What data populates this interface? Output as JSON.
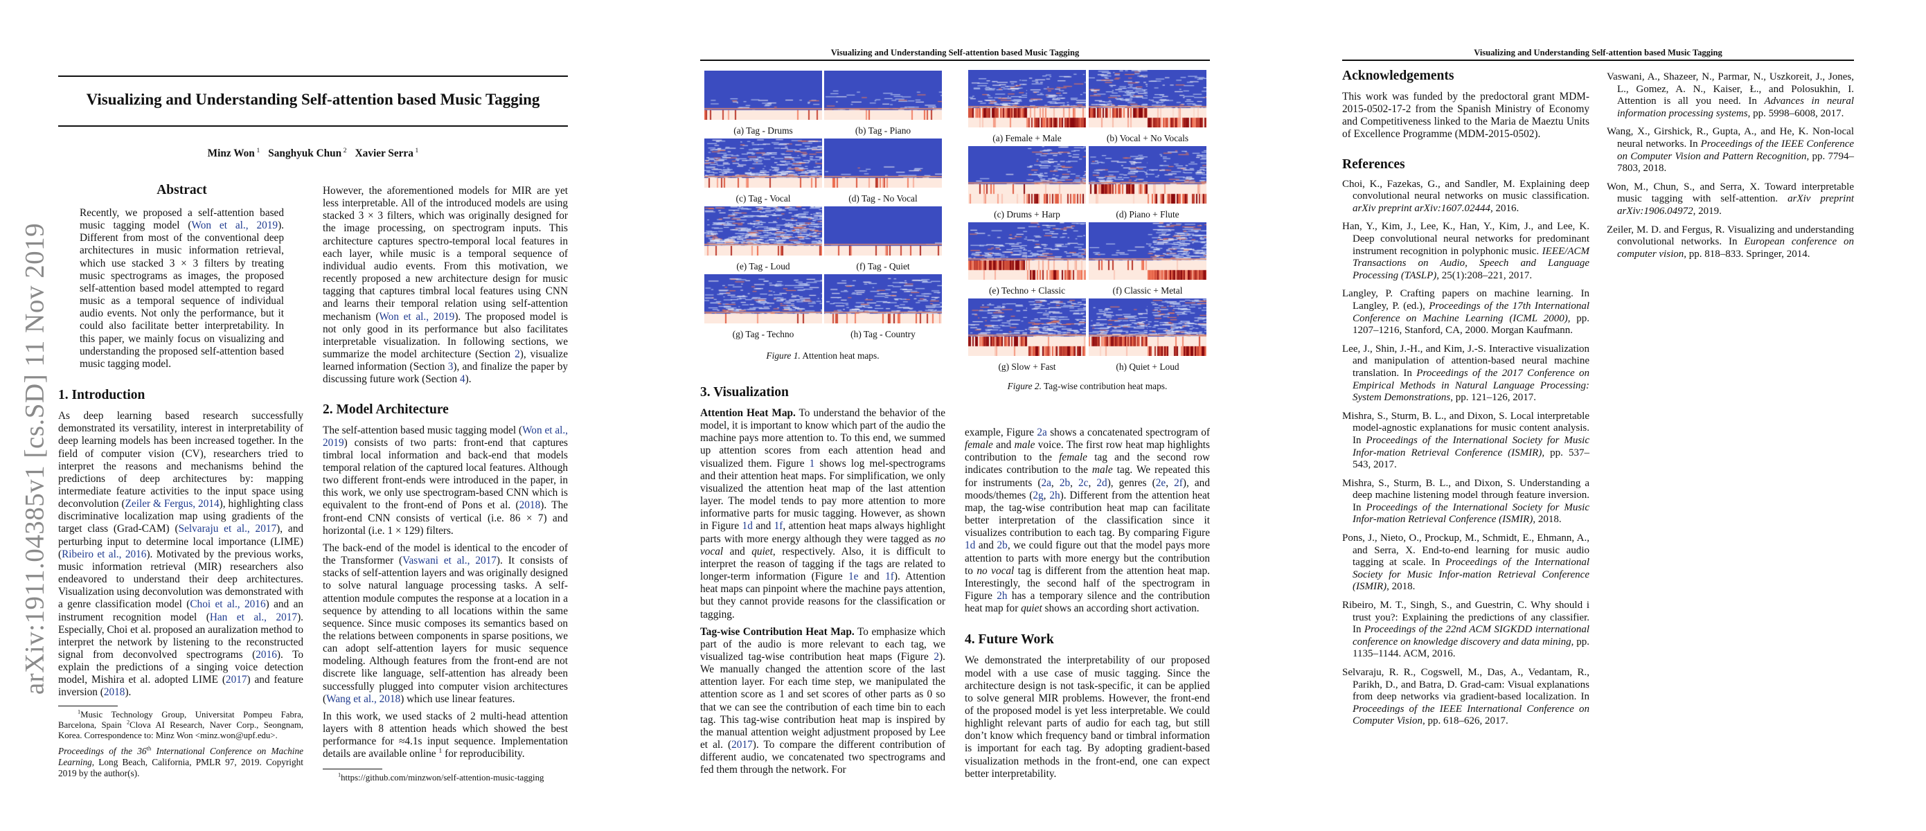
{
  "sidebar": {
    "arxiv_id": "arXiv:1911.04385v1  [cs.SD]  11 Nov 2019"
  },
  "running_header": "Visualizing and Understanding Self-attention based Music Tagging",
  "page1": {
    "title": "Visualizing and Understanding Self-attention based Music Tagging",
    "authors": [
      {
        "name": "Minz Won",
        "aff": "1"
      },
      {
        "name": "Sanghyuk Chun",
        "aff": "2"
      },
      {
        "name": "Xavier Serra",
        "aff": "1"
      }
    ],
    "abstract_heading": "Abstract",
    "abstract": [
      [
        "Recently, we proposed a self-attention based music tagging model (",
        {
          "link": "Won et al., 2019"
        },
        "). Different from most of the conventional deep architectures in music information retrieval, which use stacked 3 × 3 filters by treating music spectrograms as images, the proposed self-attention based model attempted to regard music as a temporal sequence of individual audio events. Not only the performance, but it could also facilitate better interpretability. In this paper, we mainly focus on visualizing and understanding the proposed self-attention based music tagging model."
      ]
    ],
    "intro_cont": [
      [
        "However, the aforementioned models for MIR are yet less interpretable. All of the introduced models are using stacked 3 × 3 filters, which was originally designed for the image processing, on spectrogram inputs. This architecture captures spectro-temporal local features in each layer, while music is a temporal sequence of individual audio events. From this motivation, we recently proposed a new architecture design for music tagging that captures timbral local features using CNN and learns their temporal relation using self-attention mechanism (",
        {
          "link": "Won et al., 2019"
        },
        "). The proposed model is not only good in its performance but also facilitates interpretable visualization. In following sections, we summarize the model architecture (Section ",
        {
          "link": "2"
        },
        "), visualize learned information (Section ",
        {
          "link": "3"
        },
        "), and finalize the paper by discussing future work (Section ",
        {
          "link": "4"
        },
        ")."
      ]
    ],
    "intro_heading": "1. Introduction",
    "intro": [
      [
        "As deep learning based research successfully demonstrated its versatility, interest in interpretability of deep learning models has been increased together. In the field of computer vision (CV), researchers tried to interpret the reasons and mechanisms behind the predictions of deep architectures by: mapping intermediate feature activities to the input space using deconvolution (",
        {
          "link": "Zeiler & Fergus, 2014"
        },
        "), highlighting class discriminative localization map using gradients of the target class (Grad-CAM) (",
        {
          "link": "Selvaraju et al., 2017"
        },
        "), and perturbing input to determine local importance (LIME) (",
        {
          "link": "Ribeiro et al., 2016"
        },
        "). Motivated by the previous works, music information retrieval (MIR) researchers also endeavored to understand their deep architectures. Visualization using deconvolution was demonstrated with a genre classification model (",
        {
          "link": "Choi et al., 2016"
        },
        ") and an instrument recognition model (",
        {
          "link": "Han et al., 2017"
        },
        "). Especially, Choi et al. proposed an auralization method to interpret the network by listening to the reconstructed signal from deconvolved spectrograms (",
        {
          "link": "2016"
        },
        "). To explain the predictions of a singing voice detection model, Mishira et al. adopted LIME (",
        {
          "link": "2017"
        },
        ") and feature inversion (",
        {
          "link": "2018"
        },
        ")."
      ]
    ],
    "footnote_affil": [
      [
        {
          "sup": "1"
        },
        "Music Technology Group, Universitat Pompeu Fabra, Barcelona, Spain ",
        {
          "sup": "2"
        },
        "Clova AI Research, Naver Corp., Seongnam, Korea. Correspondence to: Minz Won <minz.won@upf.edu>."
      ]
    ],
    "proceedings": [
      [
        {
          "em": "Proceedings of the 36"
        },
        {
          "sup": "th"
        },
        {
          "em": " International Conference on Machine Learning"
        },
        ", Long Beach, California, PMLR 97, 2019. Copyright 2019 by the author(s)."
      ]
    ],
    "model_heading": "2. Model Architecture",
    "model": [
      [
        "The self-attention based music tagging model (",
        {
          "link": "Won et al., 2019"
        },
        ") consists of two parts: front-end that captures timbral local information and back-end that models temporal relation of the captured local features. Although two different front-ends were introduced in the paper, in this work, we only use spectrogram-based CNN which is equivalent to the front-end of Pons et al. (",
        {
          "link": "2018"
        },
        "). The front-end CNN consists of vertical (i.e. 86 × 7) and horizontal (i.e. 1 × 129) filters."
      ],
      [
        "The back-end of the model is identical to the encoder of the Transformer (",
        {
          "link": "Vaswani et al., 2017"
        },
        "). It consists of stacks of self-attention layers and was originally designed to solve natural language processing tasks. A self-attention module computes the response at a location in a sequence by attending to all locations within the same sequence. Since music composes its semantics based on the relations between components in sparse positions, we can adopt self-attention layers for music sequence modeling. Although features from the front-end are not discrete like language, self-attention has already been successfully plugged into computer vision architectures (",
        {
          "link": "Wang et al., 2018"
        },
        ") which use linear features."
      ],
      [
        "In this work, we used stacks of 2 multi-head attention layers with 8 attention heads which showed the best performance for ≈4.1s input sequence. Implementation details are available online ",
        {
          "sup": "1"
        },
        " for reproducibility."
      ]
    ],
    "footnote_url": [
      [
        {
          "sup": "1"
        },
        "https://github.com/minzwon/self-attention-music-tagging"
      ]
    ]
  },
  "page2": {
    "figure1": {
      "caption_label": "Figure 1.",
      "caption": " Attention heat maps.",
      "subfigures": [
        "(a) Tag - Drums",
        "(b) Tag - Piano",
        "(c) Tag - Vocal",
        "(d) Tag - No Vocal",
        "(e) Tag - Loud",
        "(f) Tag - Quiet",
        "(g) Tag - Techno",
        "(h) Tag - Country"
      ]
    },
    "figure2": {
      "caption_label": "Figure 2.",
      "caption": " Tag-wise contribution heat maps.",
      "subfigures": [
        "(a) Female + Male",
        "(b) Vocal + No Vocals",
        "(c) Drums + Harp",
        "(d) Piano + Flute",
        "(e) Techno + Classic",
        "(f) Classic + Metal",
        "(g) Slow + Fast",
        "(h) Quiet + Loud"
      ]
    },
    "vis_heading": "3. Visualization",
    "vis": [
      [
        {
          "b": "Attention Heat Map."
        },
        " To understand the behavior of the model, it is important to know which part of the audio the machine pays more attention to. To this end, we summed up attention scores from each attention head and visualized them. Figure ",
        {
          "link": "1"
        },
        " shows log mel-spectrograms and their attention heat maps. For simplification, we only visualized the attention heat map of the last attention layer. The model tends to pay more attention to more informative parts for music tagging. However, as shown in Figure ",
        {
          "link": "1d"
        },
        " and ",
        {
          "link": "1f"
        },
        ", attention heat maps always highlight parts with more energy although they were tagged as ",
        {
          "em": "no vocal"
        },
        " and ",
        {
          "em": "quiet"
        },
        ", respectively. Also, it is difficult to interpret the reason of tagging if the tags are related to longer-term information (Figure ",
        {
          "link": "1e"
        },
        " and ",
        {
          "link": "1f"
        },
        "). Attention heat maps can pinpoint where the machine pays attention, but they cannot provide reasons for the classification or tagging."
      ],
      [
        {
          "b": "Tag-wise Contribution Heat Map."
        },
        " To emphasize which part of the audio is more relevant to each tag, we visualized tag-wise contribution heat maps (Figure ",
        {
          "link": "2"
        },
        "). We manually changed the attention score of the last attention layer. For each time step, we manipulated the attention score as 1 and set scores of other parts as 0 so that we can see the contribution of each time bin to each tag. This tag-wise contribution heat map is inspired by the manual attention weight adjustment proposed by Lee et al. (",
        {
          "link": "2017"
        },
        "). To compare the different contribution of different audio, we concatenated two spectrograms and fed them through the network. For"
      ]
    ],
    "vis_cont": [
      [
        "example, Figure ",
        {
          "link": "2a"
        },
        " shows a concatenated spectrogram of ",
        {
          "em": "female"
        },
        " and ",
        {
          "em": "male"
        },
        " voice. The first row heat map highlights contribution to the ",
        {
          "em": "female"
        },
        " tag and the second row indicates contribution to the ",
        {
          "em": "male"
        },
        " tag. We repeated this for instruments (",
        {
          "link": "2a"
        },
        ", ",
        {
          "link": "2b"
        },
        ", ",
        {
          "link": "2c"
        },
        ", ",
        {
          "link": "2d"
        },
        "), genres (",
        {
          "link": "2e"
        },
        ", ",
        {
          "link": "2f"
        },
        "), and moods/themes (",
        {
          "link": "2g"
        },
        ", ",
        {
          "link": "2h"
        },
        "). Different from the attention heat map, the tag-wise contribution heat map can facilitate better interpretation of the classification since it visualizes contribution to each tag. By comparing Figure ",
        {
          "link": "1d"
        },
        " and ",
        {
          "link": "2b"
        },
        ", we could figure out that the model pays more attention to parts with more energy but the contribution to ",
        {
          "em": "no vocal"
        },
        " tag is different from the attention heat map. Interestingly, the second half of the spectrogram in Figure ",
        {
          "link": "2h"
        },
        " has a temporary silence and the contribution heat map for ",
        {
          "em": "quiet"
        },
        " shows an according short activation."
      ]
    ],
    "future_heading": "4. Future Work",
    "future": [
      [
        "We demonstrated the interpretability of our proposed model with a use case of music tagging. Since the architecture design is not task-specific, it can be applied to solve general MIR problems. However, the front-end of the proposed model is yet less interpretable. We could highlight relevant parts of audio for each tag, but still don’t know which frequency band or timbral information is important for each tag. By adopting gradient-based visualization methods in the front-end, one can expect better interpretability."
      ]
    ]
  },
  "page3": {
    "ack_heading": "Acknowledgements",
    "ack": [
      [
        "This work was funded by the predoctoral grant MDM-2015-0502-17-2 from the Spanish Ministry of Economy and Competitiveness linked to the Maria de Maeztu Units of Excellence Programme (MDM-2015-0502)."
      ]
    ],
    "refs_heading": "References",
    "refs_left": [
      [
        "Choi, K., Fazekas, G., and Sandler, M. Explaining deep convolutional neural networks on music classification. ",
        {
          "em": "arXiv preprint arXiv:1607.02444"
        },
        ", 2016."
      ],
      [
        "Han, Y., Kim, J., Lee, K., Han, Y., Kim, J., and Lee, K. Deep convolutional neural networks for predominant instrument recognition in polyphonic music. ",
        {
          "em": "IEEE/ACM Transactions on Audio, Speech and Language Processing (TASLP)"
        },
        ", 25(1):208–221, 2017."
      ],
      [
        "Langley, P. Crafting papers on machine learning. In Langley, P. (ed.), ",
        {
          "em": "Proceedings of the 17th International Conference on Machine Learning (ICML 2000)"
        },
        ", pp. 1207–1216, Stanford, CA, 2000. Morgan Kaufmann."
      ],
      [
        "Lee, J., Shin, J.-H., and Kim, J.-S. Interactive visualization and manipulation of attention-based neural machine translation. In ",
        {
          "em": "Proceedings of the 2017 Conference on Empirical Methods in Natural Language Processing: System Demonstrations"
        },
        ", pp. 121–126, 2017."
      ],
      [
        "Mishra, S., Sturm, B. L., and Dixon, S. Local interpretable model-agnostic explanations for music content analysis. In ",
        {
          "em": "Proceedings of the International Society for Music Infor-mation Retrieval Conference (ISMIR)"
        },
        ", pp. 537–543, 2017."
      ],
      [
        "Mishra, S., Sturm, B. L., and Dixon, S. Understanding a deep machine listening model through feature inversion. In ",
        {
          "em": "Proceedings of the International Society for Music Infor-mation Retrieval Conference (ISMIR)"
        },
        ", 2018."
      ],
      [
        "Pons, J., Nieto, O., Prockup, M., Schmidt, E., Ehmann, A., and Serra, X. End-to-end learning for music audio tagging at scale. In ",
        {
          "em": "Proceedings of the International Society for Music Infor-mation Retrieval Conference (ISMIR)"
        },
        ", 2018."
      ],
      [
        "Ribeiro, M. T., Singh, S., and Guestrin, C. Why should i trust you?: Explaining the predictions of any classifier. In ",
        {
          "em": "Proceedings of the 22nd ACM SIGKDD international conference on knowledge discovery and data mining"
        },
        ", pp. 1135–1144. ACM, 2016."
      ],
      [
        "Selvaraju, R. R., Cogswell, M., Das, A., Vedantam, R., Parikh, D., and Batra, D. Grad-cam: Visual explanations from deep networks via gradient-based localization. In ",
        {
          "em": "Proceedings of the IEEE International Conference on Computer Vision"
        },
        ", pp. 618–626, 2017."
      ]
    ],
    "refs_right": [
      [
        "Vaswani, A., Shazeer, N., Parmar, N., Uszkoreit, J., Jones, L., Gomez, A. N., Kaiser, Ł., and Polosukhin, I. Attention is all you need. In ",
        {
          "em": "Advances in neural information processing systems"
        },
        ", pp. 5998–6008, 2017."
      ],
      [
        "Wang, X., Girshick, R., Gupta, A., and He, K. Non-local neural networks. In ",
        {
          "em": "Proceedings of the IEEE Conference on Computer Vision and Pattern Recognition"
        },
        ", pp. 7794–7803, 2018."
      ],
      [
        "Won, M., Chun, S., and Serra, X. Toward interpretable music tagging with self-attention. ",
        {
          "em": "arXiv preprint arXiv:1906.04972"
        },
        ", 2019."
      ],
      [
        "Zeiler, M. D. and Fergus, R. Visualizing and understanding convolutional networks. In ",
        {
          "em": "European conference on computer vision"
        },
        ", pp. 818–833. Springer, 2014."
      ]
    ]
  },
  "colors": {
    "link": "#1f3b8f",
    "spectrogram_bg": "#3b4cc0",
    "heat_low": "#fde9df",
    "heat_high": "#8b0a0e"
  }
}
